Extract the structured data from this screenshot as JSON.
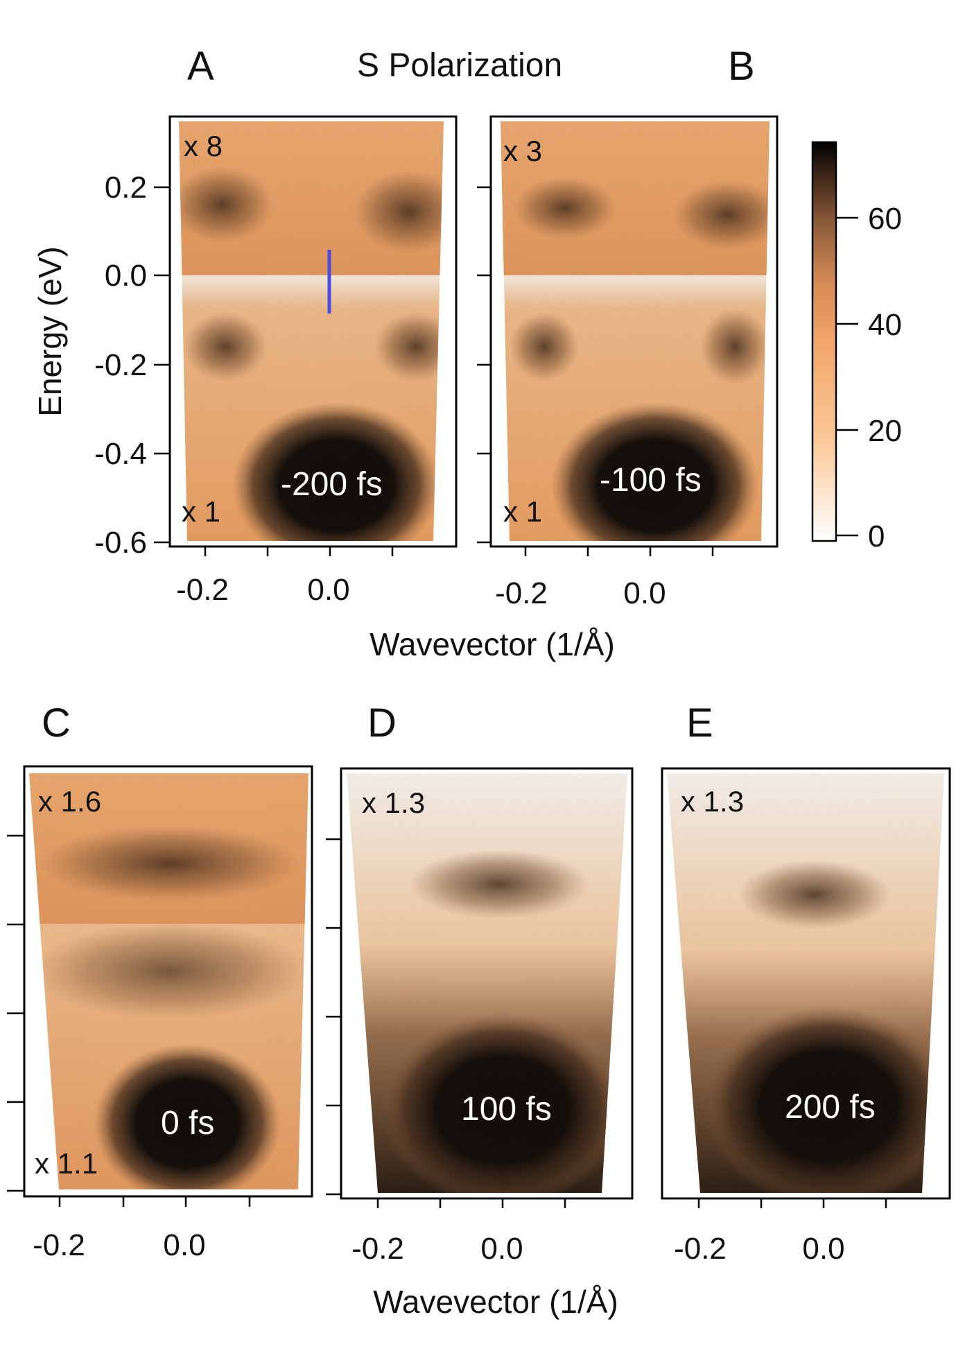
{
  "chart_data": {
    "type": "heatmap",
    "title": "S Polarization",
    "xlabel": "Wavevector (1/Å)",
    "ylabel": "Energy (eV)",
    "x_tick_labels": [
      "-0.2",
      "0.0"
    ],
    "y_tick_labels": [
      "0.2",
      "0.0",
      "-0.2",
      "-0.4",
      "-0.6"
    ],
    "ylim": [
      -0.6,
      0.35
    ],
    "xlim": [
      -0.25,
      0.2
    ],
    "colorbar": {
      "ticks": [
        "60",
        "40",
        "20",
        "0"
      ],
      "range": [
        0,
        75
      ],
      "colormap": [
        "#ffffff",
        "#fbc998",
        "#f2a66a",
        "#d48a55",
        "#8a5a38",
        "#3a2416",
        "#000000"
      ]
    },
    "fermi_marker_color": "#4b4be0",
    "panels": [
      {
        "letter": "A",
        "delay": "-200 fs",
        "mult_upper": "x 8",
        "mult_lower": "x 1"
      },
      {
        "letter": "B",
        "delay": "-100 fs",
        "mult_upper": "x 3",
        "mult_lower": "x 1"
      },
      {
        "letter": "C",
        "delay": "0 fs",
        "mult_upper": "x 1.6",
        "mult_lower": "x 1.1"
      },
      {
        "letter": "D",
        "delay": "100 fs",
        "mult_upper": "x 1.3",
        "mult_lower": ""
      },
      {
        "letter": "E",
        "delay": "200 fs",
        "mult_upper": "x 1.3",
        "mult_lower": ""
      }
    ]
  }
}
